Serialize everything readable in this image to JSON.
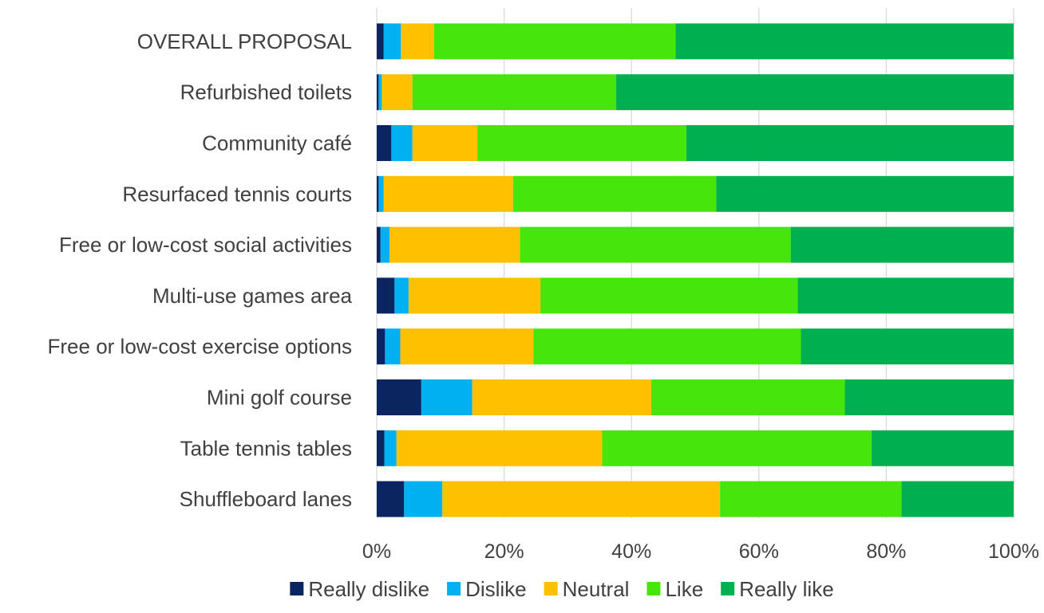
{
  "chart_data": {
    "type": "bar",
    "orientation": "horizontal",
    "stacked": "percent",
    "categories": [
      "OVERALL PROPOSAL",
      "Refurbished toilets",
      "Community café",
      "Resurfaced tennis courts",
      "Free or low-cost social activities",
      "Multi-use games area",
      "Free or low-cost exercise options",
      "Mini golf course",
      "Table tennis tables",
      "Shuffleboard lanes"
    ],
    "series": [
      {
        "name": "Really dislike",
        "color": "#0b2560",
        "values": [
          1.1,
          0.3,
          2.3,
          0.3,
          0.6,
          2.8,
          1.3,
          7.0,
          1.2,
          4.3
        ]
      },
      {
        "name": "Dislike",
        "color": "#00b0f0",
        "values": [
          2.7,
          0.5,
          3.3,
          0.8,
          1.4,
          2.2,
          2.4,
          8.0,
          1.9,
          6.0
        ]
      },
      {
        "name": "Neutral",
        "color": "#ffc000",
        "values": [
          5.2,
          4.8,
          10.2,
          20.3,
          20.5,
          20.7,
          20.9,
          28.1,
          32.3,
          43.6
        ]
      },
      {
        "name": "Like",
        "color": "#46e60c",
        "values": [
          37.9,
          32.0,
          32.8,
          31.9,
          42.5,
          40.4,
          42.0,
          30.4,
          42.3,
          28.5
        ]
      },
      {
        "name": "Really like",
        "color": "#00b050",
        "values": [
          53.1,
          62.4,
          51.4,
          46.7,
          35.0,
          33.9,
          33.4,
          26.5,
          22.3,
          17.6
        ]
      }
    ],
    "x_ticks": [
      "0%",
      "20%",
      "40%",
      "60%",
      "80%",
      "100%"
    ],
    "xlim": [
      0,
      100
    ],
    "grid": true,
    "legend_position": "bottom",
    "gridline_color": "#d9d9d9"
  }
}
